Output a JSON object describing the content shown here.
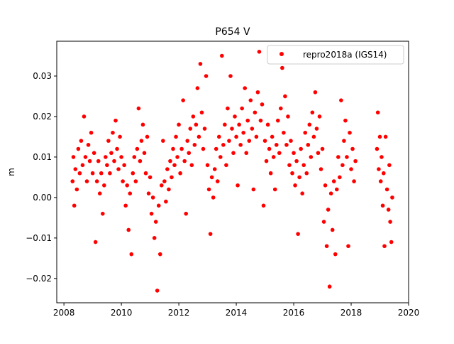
{
  "chart_data": {
    "type": "scatter",
    "title": "P654 V",
    "xlabel": "",
    "ylabel": "m",
    "xlim": [
      2007.75,
      2020.0
    ],
    "ylim": [
      -0.026,
      0.0386
    ],
    "xticks": [
      2008,
      2010,
      2012,
      2014,
      2016,
      2018,
      2020
    ],
    "xtick_labels": [
      "2008",
      "2010",
      "2012",
      "2014",
      "2016",
      "2018",
      "2020"
    ],
    "yticks": [
      -0.02,
      -0.01,
      0.0,
      0.01,
      0.02,
      0.03
    ],
    "ytick_labels": [
      "−0.02",
      "−0.01",
      "0.00",
      "0.01",
      "0.02",
      "0.03"
    ],
    "grid": false,
    "legend": {
      "placement": "top-right",
      "entries": [
        "repro2018a (IGS14)"
      ]
    },
    "series": [
      {
        "name": "repro2018a (IGS14)",
        "color": "#ff0000",
        "marker": "circle",
        "points": [
          [
            2008.3,
            0.004
          ],
          [
            2008.33,
            0.01
          ],
          [
            2008.36,
            -0.002
          ],
          [
            2008.4,
            0.007
          ],
          [
            2008.45,
            0.002
          ],
          [
            2008.5,
            0.012
          ],
          [
            2008.55,
            0.006
          ],
          [
            2008.6,
            0.014
          ],
          [
            2008.65,
            0.008
          ],
          [
            2008.7,
            0.02
          ],
          [
            2008.75,
            0.01
          ],
          [
            2008.8,
            0.004
          ],
          [
            2008.85,
            0.013
          ],
          [
            2008.9,
            0.009
          ],
          [
            2008.95,
            0.016
          ],
          [
            2009.0,
            0.006
          ],
          [
            2009.05,
            0.011
          ],
          [
            2009.1,
            -0.011
          ],
          [
            2009.15,
            0.004
          ],
          [
            2009.2,
            0.009
          ],
          [
            2009.25,
            0.001
          ],
          [
            2009.3,
            0.006
          ],
          [
            2009.35,
            -0.004
          ],
          [
            2009.4,
            0.003
          ],
          [
            2009.45,
            0.01
          ],
          [
            2009.5,
            0.008
          ],
          [
            2009.55,
            0.014
          ],
          [
            2009.6,
            0.006
          ],
          [
            2009.65,
            0.011
          ],
          [
            2009.7,
            0.016
          ],
          [
            2009.75,
            0.009
          ],
          [
            2009.8,
            0.019
          ],
          [
            2009.85,
            0.012
          ],
          [
            2009.9,
            0.007
          ],
          [
            2009.95,
            0.015
          ],
          [
            2010.0,
            0.01
          ],
          [
            2010.05,
            0.004
          ],
          [
            2010.1,
            0.008
          ],
          [
            2010.15,
            -0.002
          ],
          [
            2010.2,
            0.003
          ],
          [
            2010.25,
            -0.008
          ],
          [
            2010.3,
            0.001
          ],
          [
            2010.35,
            -0.014
          ],
          [
            2010.4,
            0.006
          ],
          [
            2010.45,
            0.01
          ],
          [
            2010.5,
            0.004
          ],
          [
            2010.55,
            0.012
          ],
          [
            2010.6,
            0.022
          ],
          [
            2010.65,
            0.009
          ],
          [
            2010.7,
            0.014
          ],
          [
            2010.75,
            0.018
          ],
          [
            2010.8,
            0.011
          ],
          [
            2010.85,
            0.006
          ],
          [
            2010.9,
            0.015
          ],
          [
            2010.95,
            0.001
          ],
          [
            2011.0,
            0.005
          ],
          [
            2011.05,
            -0.004
          ],
          [
            2011.1,
            0.0
          ],
          [
            2011.15,
            -0.01
          ],
          [
            2011.2,
            -0.006
          ],
          [
            2011.25,
            -0.023
          ],
          [
            2011.3,
            -0.002
          ],
          [
            2011.35,
            -0.014
          ],
          [
            2011.4,
            0.003
          ],
          [
            2011.45,
            0.014
          ],
          [
            2011.5,
            0.004
          ],
          [
            2011.55,
            -0.001
          ],
          [
            2011.6,
            0.007
          ],
          [
            2011.65,
            0.002
          ],
          [
            2011.7,
            0.009
          ],
          [
            2011.75,
            0.005
          ],
          [
            2011.8,
            0.012
          ],
          [
            2011.85,
            0.008
          ],
          [
            2011.9,
            0.015
          ],
          [
            2011.95,
            0.01
          ],
          [
            2012.0,
            0.018
          ],
          [
            2012.05,
            0.006
          ],
          [
            2012.1,
            0.012
          ],
          [
            2012.15,
            0.024
          ],
          [
            2012.2,
            0.009
          ],
          [
            2012.25,
            -0.004
          ],
          [
            2012.3,
            0.014
          ],
          [
            2012.35,
            0.011
          ],
          [
            2012.4,
            0.017
          ],
          [
            2012.45,
            0.008
          ],
          [
            2012.5,
            0.02
          ],
          [
            2012.55,
            0.013
          ],
          [
            2012.6,
            0.018
          ],
          [
            2012.65,
            0.027
          ],
          [
            2012.7,
            0.015
          ],
          [
            2012.75,
            0.033
          ],
          [
            2012.8,
            0.021
          ],
          [
            2012.85,
            0.012
          ],
          [
            2012.9,
            0.017
          ],
          [
            2012.95,
            0.03
          ],
          [
            2013.0,
            0.008
          ],
          [
            2013.05,
            0.002
          ],
          [
            2013.1,
            -0.009
          ],
          [
            2013.15,
            0.005
          ],
          [
            2013.2,
            0.0
          ],
          [
            2013.25,
            0.007
          ],
          [
            2013.3,
            0.012
          ],
          [
            2013.35,
            0.004
          ],
          [
            2013.4,
            0.015
          ],
          [
            2013.45,
            0.01
          ],
          [
            2013.5,
            0.035
          ],
          [
            2013.55,
            0.013
          ],
          [
            2013.6,
            0.018
          ],
          [
            2013.65,
            0.008
          ],
          [
            2013.7,
            0.022
          ],
          [
            2013.75,
            0.014
          ],
          [
            2013.8,
            0.03
          ],
          [
            2013.85,
            0.017
          ],
          [
            2013.9,
            0.011
          ],
          [
            2013.95,
            0.02
          ],
          [
            2014.0,
            0.015
          ],
          [
            2014.05,
            0.003
          ],
          [
            2014.1,
            0.018
          ],
          [
            2014.15,
            0.013
          ],
          [
            2014.2,
            0.022
          ],
          [
            2014.25,
            0.016
          ],
          [
            2014.3,
            0.027
          ],
          [
            2014.35,
            0.011
          ],
          [
            2014.4,
            0.019
          ],
          [
            2014.45,
            0.014
          ],
          [
            2014.5,
            0.024
          ],
          [
            2014.55,
            0.017
          ],
          [
            2014.6,
            0.002
          ],
          [
            2014.65,
            0.021
          ],
          [
            2014.7,
            0.015
          ],
          [
            2014.75,
            0.026
          ],
          [
            2014.8,
            0.036
          ],
          [
            2014.85,
            0.019
          ],
          [
            2014.9,
            0.023
          ],
          [
            2014.95,
            -0.002
          ],
          [
            2015.0,
            0.014
          ],
          [
            2015.05,
            0.009
          ],
          [
            2015.1,
            0.018
          ],
          [
            2015.15,
            0.012
          ],
          [
            2015.2,
            0.006
          ],
          [
            2015.25,
            0.015
          ],
          [
            2015.3,
            0.01
          ],
          [
            2015.35,
            0.002
          ],
          [
            2015.4,
            0.013
          ],
          [
            2015.45,
            0.019
          ],
          [
            2015.5,
            0.011
          ],
          [
            2015.55,
            0.022
          ],
          [
            2015.6,
            0.032
          ],
          [
            2015.65,
            0.016
          ],
          [
            2015.7,
            0.025
          ],
          [
            2015.75,
            0.013
          ],
          [
            2015.8,
            0.02
          ],
          [
            2015.85,
            0.008
          ],
          [
            2015.9,
            0.014
          ],
          [
            2015.95,
            0.006
          ],
          [
            2016.0,
            0.011
          ],
          [
            2016.05,
            0.003
          ],
          [
            2016.1,
            0.009
          ],
          [
            2016.15,
            -0.009
          ],
          [
            2016.2,
            0.005
          ],
          [
            2016.25,
            0.012
          ],
          [
            2016.3,
            0.001
          ],
          [
            2016.35,
            0.008
          ],
          [
            2016.4,
            0.016
          ],
          [
            2016.45,
            0.006
          ],
          [
            2016.5,
            0.013
          ],
          [
            2016.55,
            0.018
          ],
          [
            2016.6,
            0.01
          ],
          [
            2016.65,
            0.021
          ],
          [
            2016.7,
            0.015
          ],
          [
            2016.75,
            0.026
          ],
          [
            2016.8,
            0.017
          ],
          [
            2016.85,
            0.011
          ],
          [
            2016.9,
            0.02
          ],
          [
            2016.95,
            0.007
          ],
          [
            2017.0,
            0.012
          ],
          [
            2017.05,
            -0.006
          ],
          [
            2017.1,
            0.003
          ],
          [
            2017.15,
            -0.012
          ],
          [
            2017.2,
            -0.003
          ],
          [
            2017.25,
            -0.022
          ],
          [
            2017.3,
            0.001
          ],
          [
            2017.35,
            -0.008
          ],
          [
            2017.4,
            0.004
          ],
          [
            2017.45,
            -0.014
          ],
          [
            2017.5,
            0.002
          ],
          [
            2017.55,
            0.01
          ],
          [
            2017.6,
            0.005
          ],
          [
            2017.65,
            0.024
          ],
          [
            2017.7,
            0.008
          ],
          [
            2017.75,
            0.014
          ],
          [
            2017.8,
            0.019
          ],
          [
            2017.85,
            0.01
          ],
          [
            2017.9,
            -0.012
          ],
          [
            2017.95,
            0.016
          ],
          [
            2018.0,
            0.007
          ],
          [
            2018.05,
            0.012
          ],
          [
            2018.1,
            0.004
          ],
          [
            2018.15,
            0.009
          ],
          [
            2018.9,
            0.012
          ],
          [
            2018.93,
            0.021
          ],
          [
            2018.96,
            0.007
          ],
          [
            2019.0,
            0.015
          ],
          [
            2019.03,
            0.004
          ],
          [
            2019.06,
            0.01
          ],
          [
            2019.1,
            -0.002
          ],
          [
            2019.13,
            0.006
          ],
          [
            2019.16,
            -0.012
          ],
          [
            2019.2,
            0.015
          ],
          [
            2019.25,
            0.002
          ],
          [
            2019.3,
            -0.003
          ],
          [
            2019.33,
            0.008
          ],
          [
            2019.36,
            -0.006
          ],
          [
            2019.4,
            -0.011
          ],
          [
            2019.43,
            0.0
          ]
        ]
      }
    ]
  }
}
